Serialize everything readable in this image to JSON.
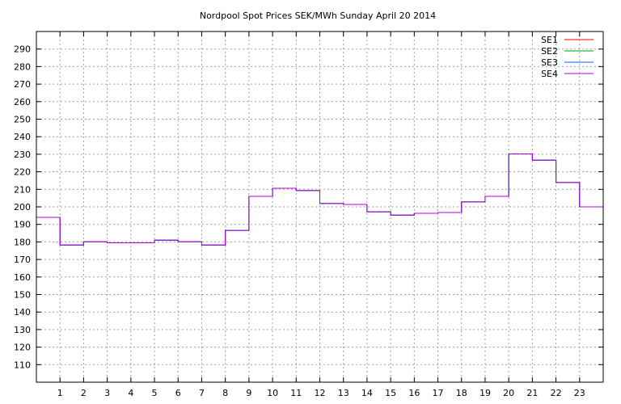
{
  "chart_data": {
    "type": "line",
    "title": "Nordpool Spot Prices SEK/MWh Sunday April 20 2014",
    "xlabel": "",
    "ylabel": "",
    "xlim": [
      0,
      24
    ],
    "ylim": [
      100,
      300
    ],
    "grid": true,
    "legend_position": "top-right",
    "x_ticks": [
      1,
      2,
      3,
      4,
      5,
      6,
      7,
      8,
      9,
      10,
      11,
      12,
      13,
      14,
      15,
      16,
      17,
      18,
      19,
      20,
      21,
      22,
      23
    ],
    "y_ticks": [
      110,
      120,
      130,
      140,
      150,
      160,
      170,
      180,
      190,
      200,
      210,
      220,
      230,
      240,
      250,
      260,
      270,
      280,
      290
    ],
    "x": [
      0,
      1,
      2,
      3,
      4,
      5,
      6,
      7,
      8,
      9,
      10,
      11,
      12,
      13,
      14,
      15,
      16,
      17,
      18,
      19,
      20,
      21,
      22,
      23
    ],
    "series": [
      {
        "name": "SE1",
        "color": "#ff0000",
        "values": [
          194.0,
          178.2,
          180.1,
          179.5,
          179.5,
          181.0,
          180.1,
          178.2,
          186.6,
          206.0,
          210.6,
          209.3,
          201.9,
          201.4,
          197.2,
          195.3,
          196.3,
          196.8,
          202.8,
          206.0,
          230.2,
          226.6,
          213.9,
          200.0
        ]
      },
      {
        "name": "SE2",
        "color": "#00a000",
        "values": [
          194.0,
          178.2,
          180.1,
          179.5,
          179.5,
          181.0,
          180.1,
          178.2,
          186.6,
          206.0,
          210.6,
          209.3,
          201.9,
          201.4,
          197.2,
          195.3,
          196.3,
          196.8,
          202.8,
          206.0,
          230.2,
          226.6,
          213.9,
          200.0
        ]
      },
      {
        "name": "SE3",
        "color": "#0066ff",
        "values": [
          194.0,
          178.2,
          180.1,
          179.5,
          179.5,
          181.0,
          180.1,
          178.2,
          186.6,
          206.0,
          210.6,
          209.3,
          201.9,
          201.4,
          197.2,
          195.3,
          196.3,
          196.8,
          202.8,
          206.0,
          230.2,
          226.6,
          213.9,
          200.0
        ]
      },
      {
        "name": "SE4",
        "color": "#b000d8",
        "values": [
          194.0,
          178.2,
          180.1,
          179.5,
          179.5,
          181.0,
          180.1,
          178.2,
          186.6,
          206.0,
          210.6,
          209.3,
          201.9,
          201.4,
          197.2,
          195.3,
          196.3,
          196.8,
          202.8,
          206.0,
          230.2,
          226.6,
          213.9,
          200.0
        ]
      }
    ]
  }
}
